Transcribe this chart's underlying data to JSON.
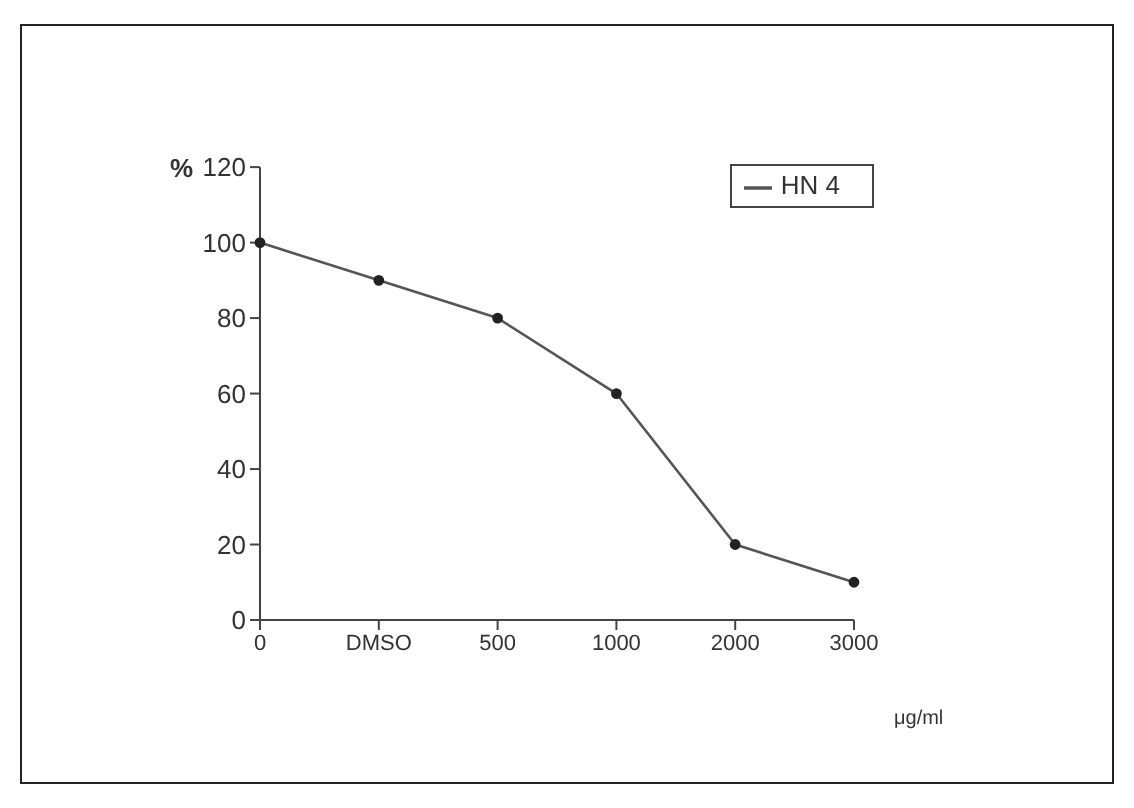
{
  "chart_data": {
    "type": "line",
    "categories": [
      "0",
      "DMSO",
      "500",
      "1000",
      "2000",
      "3000"
    ],
    "series": [
      {
        "name": "HN 4",
        "color": "#555555",
        "values": [
          100,
          90,
          80,
          60,
          20,
          10
        ]
      }
    ],
    "ylabel": "%",
    "xlabel": "μg/ml",
    "ylim": [
      0,
      120
    ],
    "yticks": [
      0,
      20,
      40,
      60,
      80,
      100,
      120
    ],
    "legend": "top right",
    "marker": "circle"
  }
}
